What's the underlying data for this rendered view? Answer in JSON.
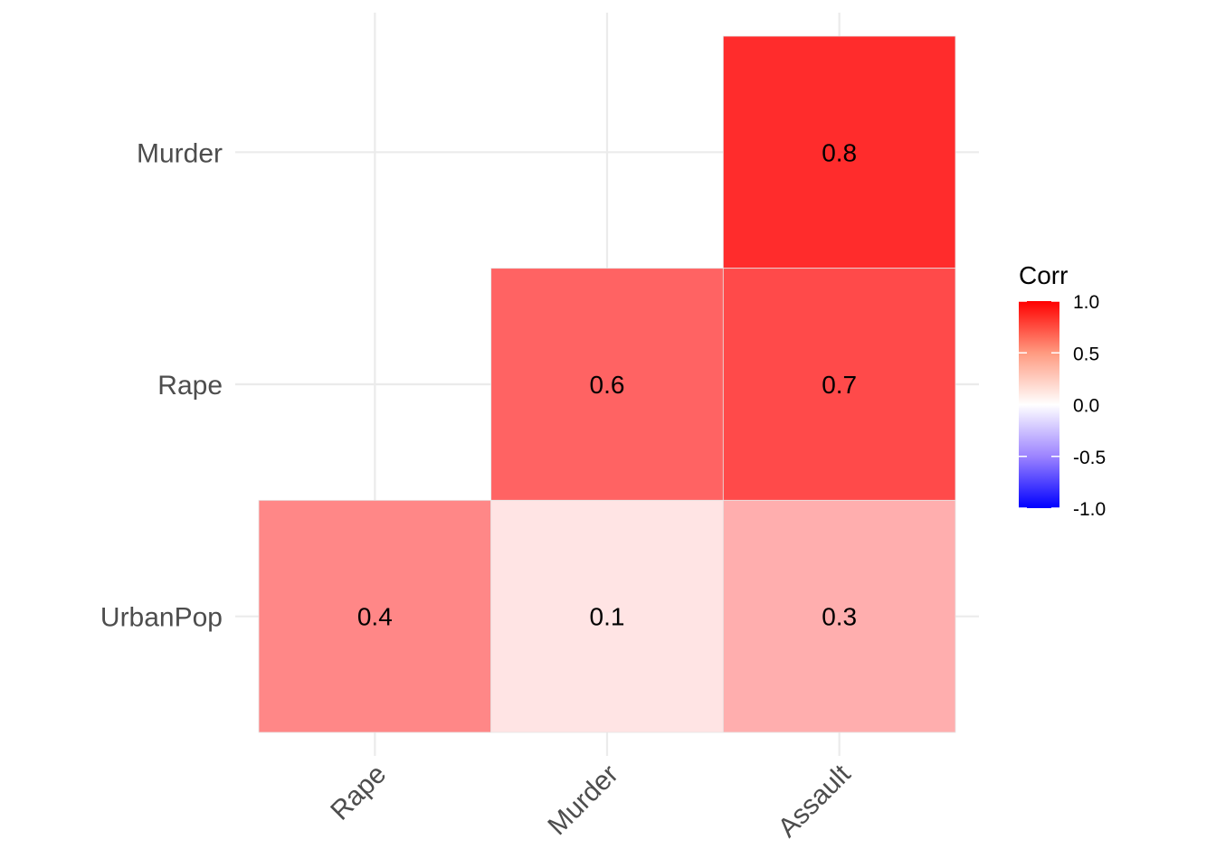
{
  "chart_data": {
    "type": "heatmap",
    "title": "",
    "xlabel": "",
    "ylabel": "",
    "x_categories": [
      "Rape",
      "Murder",
      "Assault"
    ],
    "y_categories": [
      "Murder",
      "Rape",
      "UrbanPop"
    ],
    "cells": [
      {
        "x": "Assault",
        "y": "Murder",
        "value": 0.8,
        "label": "0.8"
      },
      {
        "x": "Murder",
        "y": "Rape",
        "value": 0.56,
        "label": "0.6"
      },
      {
        "x": "Assault",
        "y": "Rape",
        "value": 0.67,
        "label": "0.7"
      },
      {
        "x": "Rape",
        "y": "UrbanPop",
        "value": 0.41,
        "label": "0.4"
      },
      {
        "x": "Murder",
        "y": "UrbanPop",
        "value": 0.07,
        "label": "0.1"
      },
      {
        "x": "Assault",
        "y": "UrbanPop",
        "value": 0.26,
        "label": "0.3"
      }
    ],
    "legend": {
      "title": "Corr",
      "position": "right",
      "range": [
        -1.0,
        1.0
      ],
      "ticks": [
        "1.0",
        "0.5",
        "0.0",
        "-0.5",
        "-1.0"
      ],
      "tick_values": [
        1.0,
        0.5,
        0.0,
        -0.5,
        -1.0
      ],
      "colors": {
        "low": "#0000ff",
        "mid": "#ffffff",
        "high": "#ff0000"
      }
    },
    "grid": true,
    "x_tick_rotation": "45 degrees"
  }
}
